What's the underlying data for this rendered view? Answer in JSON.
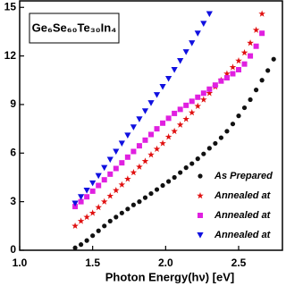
{
  "chart_data": {
    "type": "scatter",
    "title": "Ge₆Se₆₀Te₃₀In₄",
    "xlabel": "Photon Energy(hν) [eV]",
    "xlim": [
      1.0,
      2.8
    ],
    "ylim": [
      0,
      15.4
    ],
    "xticks": [
      {
        "value": 1,
        "label": "1.0"
      },
      1.5,
      {
        "value": 2,
        "label": "2.0"
      },
      2.5
    ],
    "yticks": [
      0,
      3,
      6,
      9,
      12,
      15
    ],
    "legend": "lower right",
    "series": [
      {
        "name": "As Prepared",
        "color": "#111111",
        "marker": "circle",
        "x": [
          1.38,
          1.42,
          1.46,
          1.5,
          1.54,
          1.58,
          1.62,
          1.66,
          1.7,
          1.74,
          1.78,
          1.82,
          1.86,
          1.9,
          1.94,
          1.98,
          2.02,
          2.06,
          2.1,
          2.14,
          2.18,
          2.22,
          2.26,
          2.3,
          2.34,
          2.38,
          2.42,
          2.46,
          2.5,
          2.54,
          2.58,
          2.62,
          2.66,
          2.7,
          2.74
        ],
        "values": [
          0.15,
          0.35,
          0.6,
          0.9,
          1.2,
          1.5,
          1.8,
          2.05,
          2.3,
          2.55,
          2.8,
          3.0,
          3.25,
          3.5,
          3.75,
          4.0,
          4.25,
          4.5,
          4.8,
          5.1,
          5.35,
          5.65,
          5.95,
          6.3,
          6.6,
          6.95,
          7.35,
          7.8,
          8.3,
          8.8,
          9.3,
          9.9,
          10.5,
          11.1,
          11.8
        ]
      },
      {
        "name": "Annealed at",
        "color": "#e01010",
        "marker": "star",
        "x": [
          1.38,
          1.42,
          1.46,
          1.5,
          1.54,
          1.58,
          1.62,
          1.66,
          1.7,
          1.74,
          1.78,
          1.82,
          1.86,
          1.9,
          1.94,
          1.98,
          2.02,
          2.06,
          2.1,
          2.14,
          2.18,
          2.22,
          2.26,
          2.3,
          2.34,
          2.38,
          2.42,
          2.46,
          2.5,
          2.54,
          2.58,
          2.62,
          2.66
        ],
        "values": [
          1.5,
          1.8,
          2.05,
          2.3,
          2.65,
          3.0,
          3.35,
          3.7,
          4.05,
          4.4,
          4.8,
          5.15,
          5.5,
          5.9,
          6.25,
          6.6,
          7.0,
          7.35,
          7.75,
          8.1,
          8.5,
          8.9,
          9.3,
          9.7,
          10.1,
          10.5,
          10.9,
          11.3,
          11.7,
          12.2,
          12.8,
          13.6,
          14.6
        ]
      },
      {
        "name": "Annealed at",
        "color": "#e020e0",
        "marker": "square",
        "x": [
          1.38,
          1.42,
          1.46,
          1.5,
          1.54,
          1.58,
          1.62,
          1.66,
          1.7,
          1.74,
          1.78,
          1.82,
          1.86,
          1.9,
          1.94,
          1.98,
          2.02,
          2.06,
          2.1,
          2.14,
          2.18,
          2.22,
          2.26,
          2.3,
          2.34,
          2.38,
          2.42,
          2.46,
          2.5,
          2.54,
          2.58,
          2.62,
          2.66
        ],
        "values": [
          2.7,
          3.0,
          3.3,
          3.65,
          4.0,
          4.35,
          4.7,
          5.05,
          5.4,
          5.75,
          6.1,
          6.45,
          6.8,
          7.15,
          7.5,
          7.85,
          8.15,
          8.45,
          8.7,
          8.95,
          9.2,
          9.45,
          9.7,
          9.95,
          10.2,
          10.45,
          10.65,
          10.9,
          11.15,
          11.5,
          12.0,
          12.6,
          13.4
        ]
      },
      {
        "name": "Annealed at",
        "color": "#1010e0",
        "marker": "triangle-down",
        "x": [
          1.38,
          1.42,
          1.46,
          1.5,
          1.54,
          1.58,
          1.62,
          1.66,
          1.7,
          1.74,
          1.78,
          1.82,
          1.86,
          1.9,
          1.94,
          1.98,
          2.02,
          2.06,
          2.1,
          2.14,
          2.18,
          2.22,
          2.26,
          2.3
        ],
        "values": [
          2.9,
          3.3,
          3.7,
          4.15,
          4.6,
          5.1,
          5.6,
          6.1,
          6.6,
          7.1,
          7.6,
          8.1,
          8.6,
          9.1,
          9.6,
          10.1,
          10.6,
          11.15,
          11.7,
          12.25,
          12.8,
          13.4,
          14.0,
          14.6
        ]
      }
    ]
  }
}
